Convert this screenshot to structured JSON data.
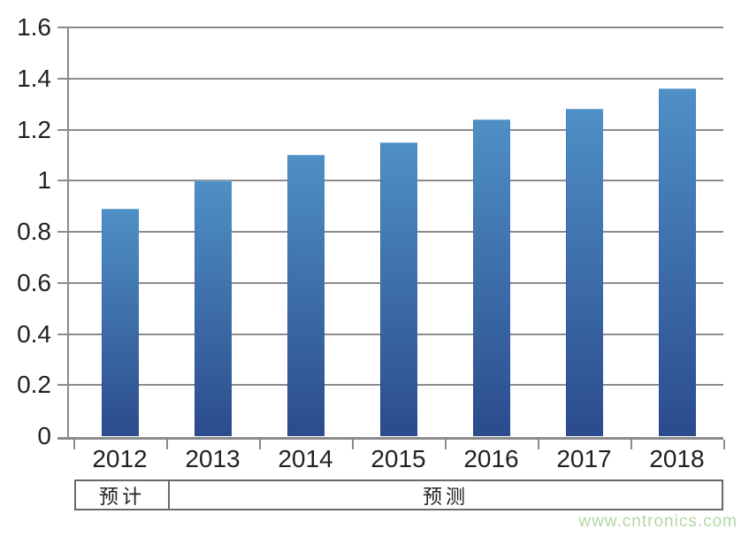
{
  "chart_data": {
    "type": "bar",
    "categories": [
      "2012",
      "2013",
      "2014",
      "2015",
      "2016",
      "2017",
      "2018"
    ],
    "values": [
      0.89,
      1.0,
      1.1,
      1.15,
      1.24,
      1.28,
      1.36
    ],
    "title": "",
    "xlabel": "",
    "ylabel": "",
    "ylim": [
      0,
      1.6
    ],
    "ytick_labels": [
      "0",
      "0.2",
      "0.4",
      "0.6",
      "0.8",
      "1",
      "1.2",
      "1.4",
      "1.6"
    ],
    "grid": true,
    "legend": "none",
    "bar_color_top": "#4f90c6",
    "bar_color_bottom": "#2b4b8d"
  },
  "annotation_row": {
    "cells": [
      {
        "label": "预计",
        "span": 1
      },
      {
        "label": "预测",
        "span": 6
      }
    ]
  },
  "watermark": {
    "text": "www.cntronics.com",
    "color": "#b2d8a4"
  },
  "colors": {
    "gridline": "#8b8b8b",
    "axis": "#8b8b8b",
    "text": "#231f20",
    "table_border": "#696969",
    "background": "#ffffff"
  }
}
